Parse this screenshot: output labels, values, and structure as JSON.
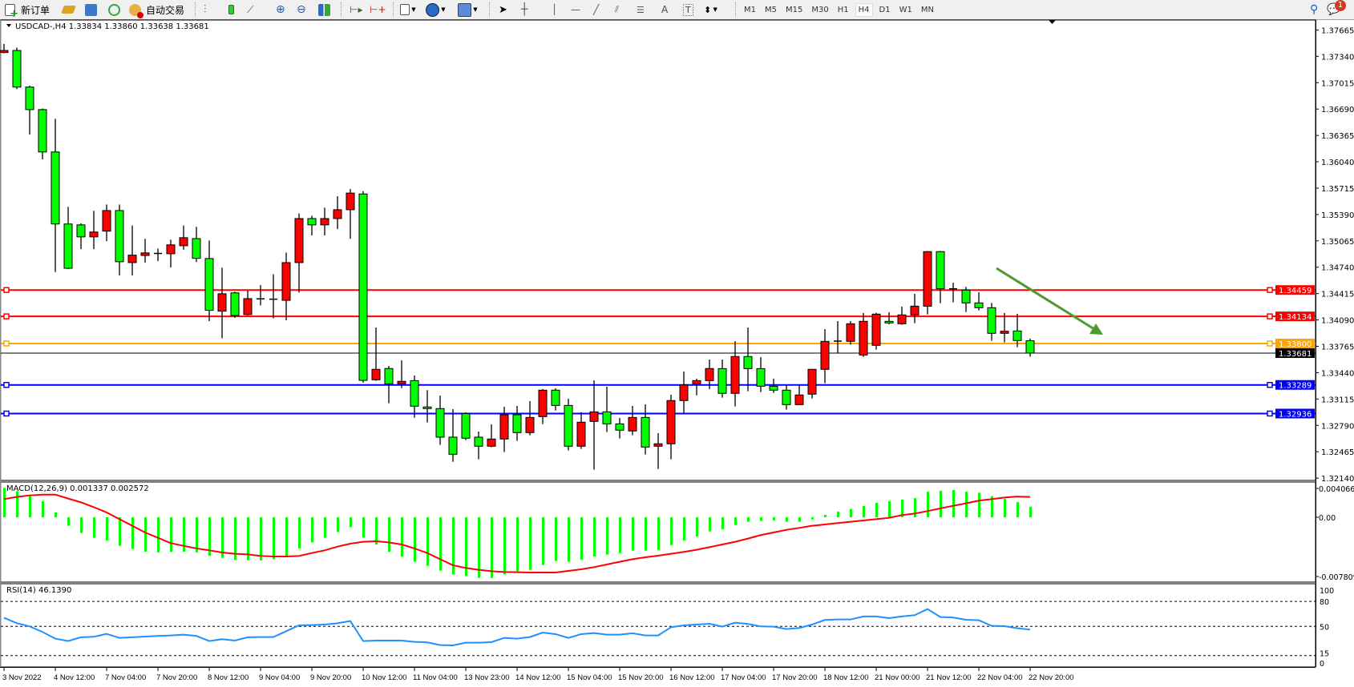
{
  "toolbar": {
    "new_order_label": "新订单",
    "auto_trading_label": "自动交易",
    "drawing_tools": {
      "text_tool": "A",
      "text_label_tool": "T"
    },
    "timeframes": [
      "M1",
      "M5",
      "M15",
      "M30",
      "H1",
      "H4",
      "D1",
      "W1",
      "MN"
    ],
    "active_timeframe": "H4",
    "notification_count": "1"
  },
  "chart": {
    "header": "USDCAD-,H4  1.33834 1.33860 1.33638 1.33681",
    "symbol": "USDCAD-",
    "timeframe": "H4",
    "colors": {
      "bull": "#ff0000",
      "bear": "#00ff00",
      "background": "#ffffff",
      "arrow": "#4e9a2e"
    },
    "price_axis_labels": [
      "1.37665",
      "1.37340",
      "1.37015",
      "1.36690",
      "1.36365",
      "1.36040",
      "1.35715",
      "1.35390",
      "1.35065",
      "1.34740",
      "1.34415",
      "1.34090",
      "1.33765",
      "1.33440",
      "1.33115",
      "1.32790",
      "1.32465",
      "1.32140"
    ],
    "levels": [
      {
        "price": "1.34459",
        "color": "#ff0000"
      },
      {
        "price": "1.34134",
        "color": "#ff0000"
      },
      {
        "price": "1.33800",
        "color": "#ffa500"
      },
      {
        "price": "1.33681",
        "color": "#000000"
      },
      {
        "price": "1.33289",
        "color": "#0000ff"
      },
      {
        "price": "1.32936",
        "color": "#0000ff"
      }
    ],
    "time_labels": [
      "3 Nov 2022",
      "4 Nov 12:00",
      "7 Nov 04:00",
      "7 Nov 20:00",
      "8 Nov 12:00",
      "9 Nov 04:00",
      "9 Nov 20:00",
      "10 Nov 12:00",
      "11 Nov 04:00",
      "13 Nov 23:00",
      "14 Nov 12:00",
      "15 Nov 04:00",
      "15 Nov 20:00",
      "16 Nov 12:00",
      "17 Nov 04:00",
      "17 Nov 20:00",
      "18 Nov 12:00",
      "21 Nov 00:00",
      "21 Nov 12:00",
      "22 Nov 04:00",
      "22 Nov 20:00"
    ],
    "candles_ohlc": [
      [
        1.37387,
        1.37493,
        1.37377,
        1.37412
      ],
      [
        1.37412,
        1.37447,
        1.36936,
        1.36961
      ],
      [
        1.36961,
        1.36979,
        1.36376,
        1.36683
      ],
      [
        1.36683,
        1.36697,
        1.36069,
        1.36161
      ],
      [
        1.36161,
        1.3657,
        1.34681,
        1.35273
      ],
      [
        1.35273,
        1.35484,
        1.34716,
        1.34727
      ],
      [
        1.35262,
        1.3528,
        1.34963,
        1.35114
      ],
      [
        1.35114,
        1.35435,
        1.34963,
        1.35174
      ],
      [
        1.35185,
        1.35513,
        1.35061,
        1.35439
      ],
      [
        1.35439,
        1.35513,
        1.34639,
        1.34808
      ],
      [
        1.34797,
        1.35255,
        1.34639,
        1.34889
      ],
      [
        1.34885,
        1.3509,
        1.34797,
        1.34917
      ],
      [
        1.3491,
        1.3497,
        1.34815,
        1.3491
      ],
      [
        1.34906,
        1.35079,
        1.34737,
        1.35016
      ],
      [
        1.35005,
        1.35255,
        1.34956,
        1.35104
      ],
      [
        1.35093,
        1.35238,
        1.34804,
        1.3485
      ],
      [
        1.34847,
        1.35069,
        1.34075,
        1.34209
      ],
      [
        1.34198,
        1.34734,
        1.33863,
        1.34413
      ],
      [
        1.34424,
        1.34438,
        1.34117,
        1.34145
      ],
      [
        1.34156,
        1.34452,
        1.34145,
        1.34353
      ],
      [
        1.3435,
        1.34519,
        1.34269,
        1.3435
      ],
      [
        1.34346,
        1.34653,
        1.3411,
        1.34346
      ],
      [
        1.34332,
        1.34921,
        1.34085,
        1.34797
      ],
      [
        1.34797,
        1.35403,
        1.34427,
        1.3534
      ],
      [
        1.3534,
        1.35375,
        1.35132,
        1.35262
      ],
      [
        1.35262,
        1.35474,
        1.35132,
        1.3534
      ],
      [
        1.3534,
        1.35615,
        1.3521,
        1.35449
      ],
      [
        1.35449,
        1.35703,
        1.3509,
        1.35654
      ],
      [
        1.35643,
        1.35678,
        1.33317,
        1.33345
      ],
      [
        1.33352,
        1.33997,
        1.33339,
        1.33481
      ],
      [
        1.33491,
        1.33523,
        1.33063,
        1.33303
      ],
      [
        1.33303,
        1.33592,
        1.3325,
        1.33333
      ],
      [
        1.33342,
        1.33405,
        1.32885,
        1.33027
      ],
      [
        1.33017,
        1.33224,
        1.32826,
        1.32997
      ],
      [
        1.32997,
        1.33158,
        1.3255,
        1.32645
      ],
      [
        1.32645,
        1.3299,
        1.32342,
        1.32434
      ],
      [
        1.32934,
        1.32951,
        1.32609,
        1.32632
      ],
      [
        1.32645,
        1.32714,
        1.32372,
        1.32533
      ],
      [
        1.32533,
        1.32803,
        1.3252,
        1.32622
      ],
      [
        1.32622,
        1.3302,
        1.32461,
        1.32921
      ],
      [
        1.32921,
        1.3303,
        1.32599,
        1.32701
      ],
      [
        1.32701,
        1.33089,
        1.32668,
        1.32888
      ],
      [
        1.32898,
        1.33237,
        1.32806,
        1.33224
      ],
      [
        1.33224,
        1.33247,
        1.32974,
        1.33036
      ],
      [
        1.33036,
        1.33119,
        1.32481,
        1.32533
      ],
      [
        1.32533,
        1.32951,
        1.325,
        1.32829
      ],
      [
        1.32839,
        1.33346,
        1.32244,
        1.32957
      ],
      [
        1.32957,
        1.33267,
        1.32708,
        1.32809
      ],
      [
        1.32809,
        1.32882,
        1.32629,
        1.32731
      ],
      [
        1.32721,
        1.3303,
        1.32668,
        1.32888
      ],
      [
        1.32888,
        1.3305,
        1.32431,
        1.32523
      ],
      [
        1.32533,
        1.32694,
        1.32253,
        1.32563
      ],
      [
        1.32563,
        1.33168,
        1.32372,
        1.33096
      ],
      [
        1.33096,
        1.33454,
        1.32941,
        1.3329
      ],
      [
        1.33303,
        1.33365,
        1.33161,
        1.33342
      ],
      [
        1.33342,
        1.33602,
        1.33237,
        1.33491
      ],
      [
        1.3349,
        1.33602,
        1.33132,
        1.33185
      ],
      [
        1.33185,
        1.33829,
        1.33023,
        1.33639
      ],
      [
        1.33639,
        1.33997,
        1.33211,
        1.3349
      ],
      [
        1.3349,
        1.33632,
        1.33201,
        1.33273
      ],
      [
        1.33273,
        1.33365,
        1.33191,
        1.33224
      ],
      [
        1.33224,
        1.3328,
        1.32984,
        1.33046
      ],
      [
        1.33046,
        1.3328,
        1.33046,
        1.33165
      ],
      [
        1.33175,
        1.33481,
        1.33122,
        1.33481
      ],
      [
        1.33481,
        1.33977,
        1.3331,
        1.33826
      ],
      [
        1.33829,
        1.34076,
        1.33678,
        1.33829
      ],
      [
        1.33826,
        1.34076,
        1.33787,
        1.34043
      ],
      [
        1.33658,
        1.34175,
        1.33635,
        1.34073
      ],
      [
        1.33777,
        1.34178,
        1.33724,
        1.34162
      ],
      [
        1.34073,
        1.34185,
        1.34037,
        1.34053
      ],
      [
        1.34043,
        1.34254,
        1.3403,
        1.34152
      ],
      [
        1.34152,
        1.34412,
        1.3405,
        1.3426
      ],
      [
        1.3426,
        1.34941,
        1.34158,
        1.34932
      ],
      [
        1.34932,
        1.34941,
        1.34297,
        1.34474
      ],
      [
        1.34474,
        1.3455,
        1.34307,
        1.34474
      ],
      [
        1.34458,
        1.34497,
        1.34188,
        1.343
      ],
      [
        1.343,
        1.34431,
        1.34208,
        1.34241
      ],
      [
        1.34241,
        1.343,
        1.33833,
        1.33925
      ],
      [
        1.33925,
        1.34175,
        1.33813,
        1.33951
      ],
      [
        1.33954,
        1.34165,
        1.33754,
        1.33836
      ],
      [
        1.33834,
        1.3386,
        1.33638,
        1.33681
      ]
    ]
  },
  "macd": {
    "label": "MACD(12,26,9) 0.001337 0.002572",
    "axis_labels": [
      "0.004066",
      "0.00",
      "-0.007809"
    ],
    "range": [
      -0.007809,
      0.004066
    ],
    "histogram": [
      0.00372,
      0.00331,
      0.00281,
      0.00203,
      0.00061,
      -0.00108,
      -0.00199,
      -0.0026,
      -0.00294,
      -0.00362,
      -0.00402,
      -0.00436,
      -0.00446,
      -0.00439,
      -0.00436,
      -0.00446,
      -0.0049,
      -0.00514,
      -0.00541,
      -0.00544,
      -0.00548,
      -0.00531,
      -0.0049,
      -0.00395,
      -0.00318,
      -0.0026,
      -0.00186,
      -0.00125,
      -0.00257,
      -0.00345,
      -0.00439,
      -0.005,
      -0.00564,
      -0.00615,
      -0.00676,
      -0.00723,
      -0.00744,
      -0.00767,
      -0.00771,
      -0.00723,
      -0.00683,
      -0.00666,
      -0.00605,
      -0.00554,
      -0.00564,
      -0.00537,
      -0.00497,
      -0.00473,
      -0.00453,
      -0.00423,
      -0.00423,
      -0.00412,
      -0.00352,
      -0.00294,
      -0.00243,
      -0.00179,
      -0.00152,
      -0.00098,
      -0.00057,
      -0.00047,
      -0.00041,
      -0.00057,
      -0.00057,
      -0.00027,
      0.0003,
      0.00071,
      0.00105,
      0.00142,
      0.00183,
      0.00203,
      0.00223,
      0.00243,
      0.00324,
      0.00335,
      0.00345,
      0.00324,
      0.00311,
      0.00267,
      0.00233,
      0.00193,
      0.001337
    ],
    "signal": [
      0.0023,
      0.00257,
      0.00277,
      0.00287,
      0.00287,
      0.00237,
      0.00189,
      0.00128,
      0.00061,
      -0.00024,
      -0.00108,
      -0.00193,
      -0.0026,
      -0.00328,
      -0.00362,
      -0.00395,
      -0.00419,
      -0.00446,
      -0.00463,
      -0.0047,
      -0.0049,
      -0.00497,
      -0.00497,
      -0.0049,
      -0.00453,
      -0.00419,
      -0.00372,
      -0.00335,
      -0.00311,
      -0.00304,
      -0.00318,
      -0.00345,
      -0.00395,
      -0.00453,
      -0.00531,
      -0.00608,
      -0.00642,
      -0.00666,
      -0.00683,
      -0.00693,
      -0.00696,
      -0.007,
      -0.007,
      -0.007,
      -0.00679,
      -0.00659,
      -0.00632,
      -0.00598,
      -0.00564,
      -0.00531,
      -0.00507,
      -0.00487,
      -0.00463,
      -0.00439,
      -0.00412,
      -0.00379,
      -0.00345,
      -0.00311,
      -0.0027,
      -0.00226,
      -0.00193,
      -0.00159,
      -0.00135,
      -0.00108,
      -0.00091,
      -0.00074,
      -0.00057,
      -0.00041,
      -0.00024,
      -7e-05,
      0.00027,
      0.00047,
      0.00078,
      0.00112,
      0.00145,
      0.00176,
      0.0021,
      0.0023,
      0.0025,
      0.00262,
      0.002572
    ]
  },
  "rsi": {
    "label": "RSI(14) 46.1390",
    "axis_labels": [
      "100",
      "80",
      "50",
      "15",
      "0"
    ],
    "levels": [
      80,
      50,
      15
    ],
    "values": [
      60.3,
      53.8,
      50,
      43.3,
      35.3,
      32.4,
      36.9,
      37.5,
      41,
      36.2,
      36.9,
      37.8,
      38.5,
      39.1,
      40.1,
      38.5,
      32.4,
      34.6,
      33,
      36.9,
      37.2,
      37.2,
      44.2,
      51.3,
      51.6,
      52.2,
      53.8,
      56.4,
      32.4,
      33,
      33,
      33,
      31.4,
      30.8,
      27.6,
      27.2,
      30.4,
      30.4,
      31.1,
      36.2,
      35.3,
      37.2,
      42.6,
      40.7,
      36.2,
      40.7,
      42,
      40.1,
      40.1,
      41.7,
      39.1,
      39.1,
      49,
      51.3,
      52.2,
      53.2,
      49.7,
      54.5,
      52.9,
      50,
      49.7,
      46.8,
      48.1,
      52.2,
      57.7,
      58.3,
      58.3,
      61.9,
      61.9,
      59.9,
      61.9,
      63.5,
      70.8,
      61.2,
      60.6,
      58,
      57.4,
      50.6,
      50.3,
      47.8,
      46.139
    ]
  }
}
